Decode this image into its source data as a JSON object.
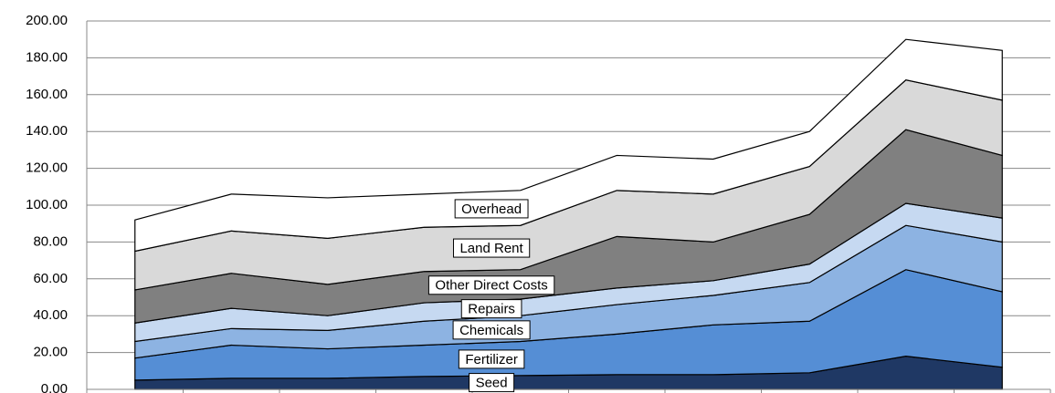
{
  "chart_data": {
    "type": "stacked-area",
    "categories": [
      null,
      null,
      null,
      null,
      null,
      null,
      null,
      null,
      null,
      null
    ],
    "series": [
      {
        "name": "Seed",
        "color": "#1f3864",
        "values": [
          5,
          6,
          6,
          7,
          7.5,
          8,
          8,
          9,
          18,
          12
        ]
      },
      {
        "name": "Fertilizer",
        "color": "#558ed5",
        "values": [
          12,
          18,
          16,
          17,
          18.5,
          22,
          27,
          28,
          47,
          41
        ]
      },
      {
        "name": "Chemicals",
        "color": "#8db3e2",
        "values": [
          9,
          9,
          10,
          13,
          14,
          16,
          16,
          21,
          24,
          27
        ]
      },
      {
        "name": "Repairs",
        "color": "#c6d9f1",
        "values": [
          10,
          11,
          8,
          10,
          9,
          9,
          8,
          10,
          12,
          13
        ]
      },
      {
        "name": "Other Direct Costs",
        "color": "#808080",
        "values": [
          18,
          19,
          17,
          17,
          16,
          28,
          21,
          27,
          40,
          34
        ]
      },
      {
        "name": "Land Rent",
        "color": "#d9d9d9",
        "values": [
          21,
          23,
          25,
          24,
          24,
          25,
          26,
          26,
          27,
          30
        ]
      },
      {
        "name": "Overhead",
        "color": "#ffffff",
        "values": [
          17,
          20,
          22,
          18,
          19,
          19,
          19,
          19,
          22,
          27
        ]
      }
    ],
    "ylim": [
      0,
      200
    ],
    "yticks": [
      {
        "value": 0,
        "label": "0.00"
      },
      {
        "value": 20,
        "label": "20.00"
      },
      {
        "value": 40,
        "label": "40.00"
      },
      {
        "value": 60,
        "label": "60.00"
      },
      {
        "value": 80,
        "label": "80.00"
      },
      {
        "value": 100,
        "label": "100.00"
      },
      {
        "value": 120,
        "label": "120.00"
      },
      {
        "value": 140,
        "label": "140.00"
      },
      {
        "value": 160,
        "label": "160.00"
      },
      {
        "value": 180,
        "label": "180.00"
      },
      {
        "value": 200,
        "label": "200.00"
      }
    ],
    "grid": true
  }
}
